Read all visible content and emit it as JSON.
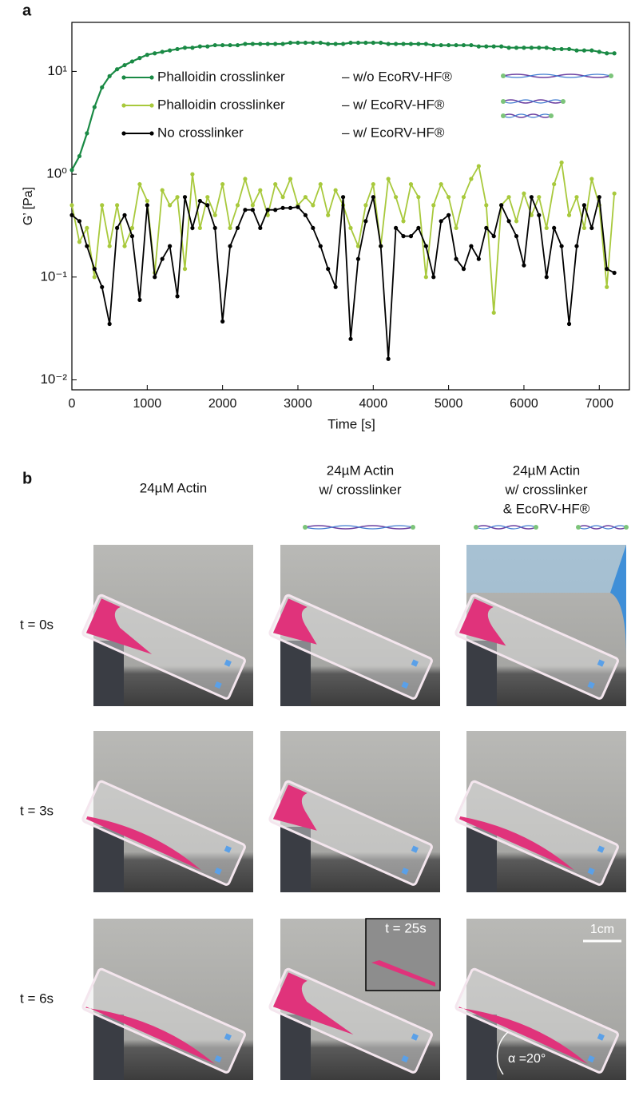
{
  "panel_a_label": "a",
  "chart_data": {
    "type": "line",
    "ylabel": "G’ [Pa]",
    "xlabel": "Time [s]",
    "log_y": true,
    "grid": false,
    "legend": "upper left",
    "x": [
      0,
      100,
      200,
      300,
      400,
      500,
      600,
      700,
      800,
      900,
      1000,
      1100,
      1200,
      1300,
      1400,
      1500,
      1600,
      1700,
      1800,
      1900,
      2000,
      2100,
      2200,
      2300,
      2400,
      2500,
      2600,
      2700,
      2800,
      2900,
      3000,
      3100,
      3200,
      3300,
      3400,
      3500,
      3600,
      3700,
      3800,
      3900,
      4000,
      4100,
      4200,
      4300,
      4400,
      4500,
      4600,
      4700,
      4800,
      4900,
      5000,
      5100,
      5200,
      5300,
      5400,
      5500,
      5600,
      5700,
      5800,
      5900,
      6000,
      6100,
      6200,
      6300,
      6400,
      6500,
      6600,
      6700,
      6800,
      6900,
      7000,
      7100,
      7200
    ],
    "series": [
      {
        "name": "Phalloidin crosslinker",
        "condition": "– w/o EcoRV-HF®",
        "color": "#1a8a45",
        "values": [
          1.1,
          1.5,
          2.5,
          4.5,
          7,
          9,
          10.5,
          11.5,
          12.5,
          13.5,
          14.5,
          15,
          15.5,
          16,
          16.5,
          17,
          17,
          17.5,
          17.5,
          18,
          18,
          18,
          18,
          18.5,
          18.5,
          18.5,
          18.5,
          18.5,
          18.5,
          19,
          19,
          19,
          19,
          19,
          18.5,
          18.5,
          18.5,
          19,
          19,
          19,
          19,
          19,
          18.5,
          18.5,
          18.5,
          18.5,
          18.5,
          18.5,
          18,
          18,
          18,
          18,
          18,
          18,
          17.5,
          17.5,
          17.5,
          17.5,
          17,
          17,
          17,
          17,
          17,
          17,
          16.5,
          16.5,
          16.5,
          16,
          16,
          16,
          15.5,
          15,
          15
        ]
      },
      {
        "name": "Phalloidin crosslinker",
        "condition": "– w/   EcoRV-HF®",
        "color": "#a8c93c",
        "values": [
          0.5,
          0.22,
          0.3,
          0.1,
          0.5,
          0.2,
          0.5,
          0.2,
          0.3,
          0.8,
          0.55,
          0.11,
          0.7,
          0.5,
          0.6,
          0.12,
          1.0,
          0.3,
          0.6,
          0.4,
          0.8,
          0.3,
          0.5,
          0.9,
          0.5,
          0.7,
          0.4,
          0.8,
          0.6,
          0.9,
          0.5,
          0.6,
          0.5,
          0.8,
          0.4,
          0.7,
          0.5,
          0.3,
          0.2,
          0.5,
          0.8,
          0.2,
          0.9,
          0.6,
          0.35,
          0.8,
          0.6,
          0.1,
          0.5,
          0.8,
          0.6,
          0.3,
          0.6,
          0.9,
          1.2,
          0.5,
          0.045,
          0.5,
          0.6,
          0.35,
          0.65,
          0.4,
          0.6,
          0.3,
          0.8,
          1.3,
          0.4,
          0.6,
          0.3,
          0.9,
          0.5,
          0.08,
          0.65
        ]
      },
      {
        "name": "No crosslinker",
        "condition": "– w/   EcoRV-HF®",
        "color": "#000000",
        "values": [
          0.4,
          0.35,
          0.2,
          0.12,
          0.08,
          0.035,
          0.3,
          0.4,
          0.25,
          0.06,
          0.5,
          0.1,
          0.15,
          0.2,
          0.065,
          0.6,
          0.3,
          0.55,
          0.5,
          0.3,
          0.037,
          0.2,
          0.3,
          0.45,
          0.45,
          0.3,
          0.45,
          0.45,
          0.47,
          0.47,
          0.48,
          0.4,
          0.3,
          0.2,
          0.12,
          0.08,
          0.6,
          0.025,
          0.15,
          0.35,
          0.6,
          0.2,
          0.016,
          0.3,
          0.25,
          0.25,
          0.3,
          0.2,
          0.1,
          0.35,
          0.4,
          0.15,
          0.12,
          0.2,
          0.15,
          0.3,
          0.25,
          0.5,
          0.35,
          0.25,
          0.13,
          0.6,
          0.4,
          0.1,
          0.3,
          0.2,
          0.035,
          0.2,
          0.5,
          0.3,
          0.6,
          0.12,
          0.11
        ]
      }
    ],
    "xlim": [
      0,
      7400
    ],
    "xticks": [
      0,
      1000,
      2000,
      3000,
      4000,
      5000,
      6000,
      7000
    ],
    "ylim": [
      0.008,
      30
    ],
    "yticks": [
      {
        "value": 0.01,
        "label": "10⁻²"
      },
      {
        "value": 0.1,
        "label": "10⁻¹"
      },
      {
        "value": 1,
        "label": "10⁰"
      },
      {
        "value": 10,
        "label": "10¹"
      }
    ]
  },
  "panel_b": {
    "label": "b",
    "columns": [
      [
        "24µM Actin"
      ],
      [
        "24µM Actin",
        "w/ crosslinker"
      ],
      [
        "24µM Actin",
        "w/ crosslinker",
        "& EcoRV-HF®"
      ]
    ],
    "rows": [
      "t = 0s",
      "t = 3s",
      "t = 6s"
    ],
    "inset_label": "t = 25s",
    "scale_bar": "1cm",
    "angle_label": "α =20°"
  }
}
